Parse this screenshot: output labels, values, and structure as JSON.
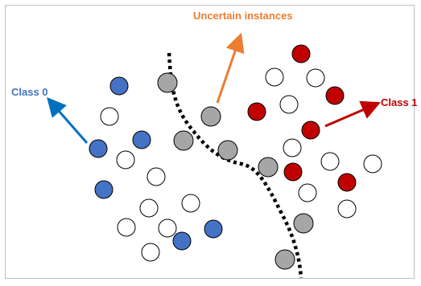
{
  "labels": {
    "class0": "Class 0",
    "class1": "Class 1",
    "uncertain": "Uncertain instances"
  },
  "colors": {
    "class0": "#4472C4",
    "class1": "#C00000",
    "uncertain": "#A6A6A6",
    "unlabeled": "#FFFFFF",
    "class0_arrow": "#0070C0",
    "class1_arrow": "#C00000",
    "uncertain_arrow": "#ED7D31",
    "boundary": "#000000"
  }
}
